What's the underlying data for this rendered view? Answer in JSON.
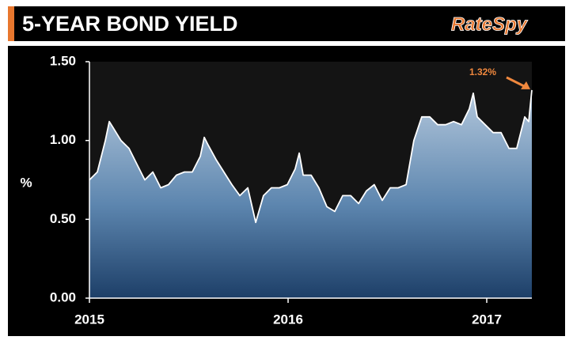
{
  "header": {
    "title": "5-YEAR BOND YIELD",
    "logo": "RateSpy"
  },
  "chart_data": {
    "type": "area",
    "y_label": "%",
    "annotation": "1.32%",
    "x": [
      2015.0,
      2015.04,
      2015.08,
      2015.1,
      2015.12,
      2015.159,
      2015.199,
      2015.239,
      2015.279,
      2015.319,
      2015.359,
      2015.398,
      2015.438,
      2015.478,
      2015.518,
      2015.558,
      2015.578,
      2015.598,
      2015.637,
      2015.677,
      2015.717,
      2015.757,
      2015.797,
      2015.837,
      2015.876,
      2015.916,
      2015.956,
      2015.996,
      2016.036,
      2016.056,
      2016.076,
      2016.116,
      2016.155,
      2016.195,
      2016.235,
      2016.275,
      2016.315,
      2016.355,
      2016.394,
      2016.434,
      2016.474,
      2016.514,
      2016.554,
      2016.594,
      2016.633,
      2016.673,
      2016.713,
      2016.753,
      2016.793,
      2016.833,
      2016.873,
      2016.912,
      2016.932,
      2016.952,
      2016.992,
      2017.032,
      2017.072,
      2017.112,
      2017.151,
      2017.191,
      2017.211,
      2017.227
    ],
    "values": [
      0.75,
      0.8,
      1.0,
      1.12,
      1.08,
      1.0,
      0.95,
      0.85,
      0.75,
      0.8,
      0.7,
      0.72,
      0.78,
      0.8,
      0.8,
      0.9,
      1.02,
      0.97,
      0.88,
      0.8,
      0.72,
      0.65,
      0.7,
      0.48,
      0.65,
      0.7,
      0.7,
      0.72,
      0.82,
      0.92,
      0.78,
      0.78,
      0.7,
      0.58,
      0.55,
      0.65,
      0.65,
      0.6,
      0.68,
      0.72,
      0.62,
      0.7,
      0.7,
      0.72,
      1.0,
      1.15,
      1.15,
      1.1,
      1.1,
      1.12,
      1.1,
      1.2,
      1.3,
      1.15,
      1.1,
      1.05,
      1.05,
      0.95,
      0.95,
      1.15,
      1.12,
      1.32
    ],
    "color": "#ffffff",
    "xlim": [
      2015,
      2017.227
    ],
    "xticks": [
      2015,
      2016,
      2017
    ],
    "ylim": [
      0,
      1.5
    ],
    "yticks": [
      {
        "value": 0,
        "label": "0.00"
      },
      {
        "value": 0.5,
        "label": "0.50"
      },
      {
        "value": 1,
        "label": "1.00"
      },
      {
        "value": 1.5,
        "label": "1.50"
      }
    ],
    "grid": false
  }
}
